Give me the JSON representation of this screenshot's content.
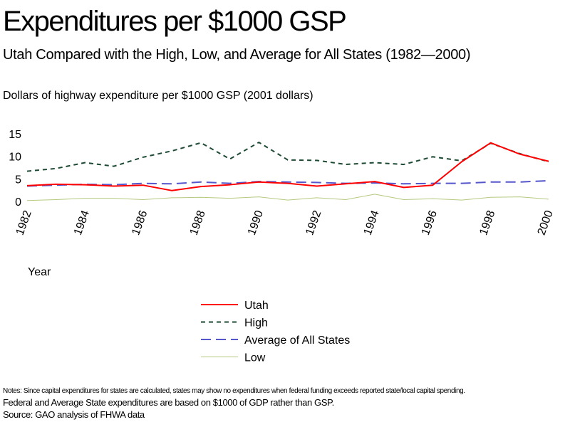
{
  "chart_data": {
    "type": "line",
    "title": "Expenditures per $1000 GSP",
    "subtitle": "Utah Compared with the High, Low, and Average for All States (1982—2000)",
    "ylabel": "Dollars of highway expenditure per $1000 GSP   (2001 dollars)",
    "xlabel": "Year",
    "ylim": [
      0,
      15
    ],
    "yticks": [
      "0",
      "5",
      "10",
      "15"
    ],
    "xticks": [
      "1982",
      "1984",
      "1986",
      "1988",
      "1990",
      "1992",
      "1994",
      "1996",
      "1998",
      "2000"
    ],
    "x": [
      1982,
      1983,
      1984,
      1985,
      1986,
      1987,
      1988,
      1989,
      1990,
      1991,
      1992,
      1993,
      1994,
      1995,
      1996,
      1997,
      1998,
      1999,
      2000
    ],
    "legend_position": "bottom",
    "series": [
      {
        "name": "Utah",
        "color": "#ff0000",
        "style": "solid",
        "values": [
          3.5,
          3.8,
          3.7,
          3.4,
          3.6,
          2.4,
          3.3,
          3.7,
          4.3,
          4.0,
          3.4,
          3.9,
          4.4,
          3.1,
          3.6,
          8.8,
          13.0,
          10.5,
          8.9
        ]
      },
      {
        "name": "High",
        "color": "#1d4a33",
        "style": "dotted",
        "values": [
          6.7,
          7.3,
          8.6,
          7.8,
          9.8,
          11.2,
          13.0,
          9.4,
          13.1,
          9.2,
          9.1,
          8.2,
          8.6,
          8.2,
          9.9,
          9.0,
          12.9,
          10.6,
          8.8
        ]
      },
      {
        "name": "Average of All States",
        "color": "#5555cc",
        "style": "dashed",
        "values": [
          3.4,
          3.6,
          3.8,
          3.7,
          4.0,
          3.9,
          4.3,
          4.0,
          4.4,
          4.3,
          4.2,
          4.0,
          4.1,
          3.9,
          4.0,
          4.0,
          4.3,
          4.3,
          4.6
        ]
      },
      {
        "name": "Low",
        "color": "#b5c97f",
        "style": "solid",
        "values": [
          0.2,
          0.4,
          0.7,
          0.7,
          0.4,
          0.8,
          0.9,
          0.7,
          1.0,
          0.3,
          0.8,
          0.4,
          1.6,
          0.4,
          0.6,
          0.3,
          0.9,
          1.0,
          0.5
        ]
      }
    ]
  },
  "notes": {
    "line1": "Notes: Since capital expenditures for states are calculated, states may show no expenditures when federal funding exceeds reported state/local capital spending.",
    "line2": "Federal and Average State expenditures are based on $1000 of GDP rather than GSP.",
    "line3": "Source: GAO  analysis of FHWA data"
  }
}
